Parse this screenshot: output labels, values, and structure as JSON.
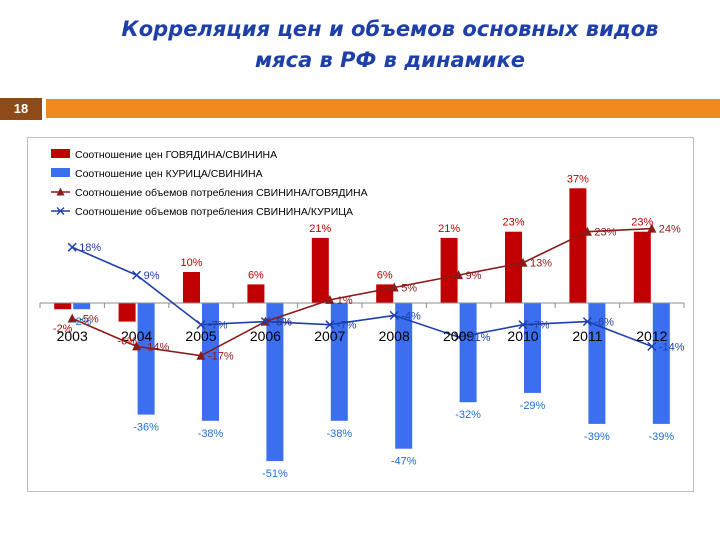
{
  "slide": {
    "title_line_1": "Корреляция цен и объемов основных видов",
    "title_line_2": "мяса в РФ в динамике",
    "number": "18"
  },
  "colors": {
    "title": "#1f3fa8",
    "number_box": "#8e4a17",
    "header_bar": "#f08a1c",
    "beef_pork_bars": "#c00000",
    "chicken_pork_bars": "#3b6ff0",
    "beef_volume_line": "#8b1a1a",
    "chicken_volume_line": "#1f3fa8"
  },
  "chart_data": {
    "type": "bar",
    "categories": [
      "2003",
      "2004",
      "2005",
      "2006",
      "2007",
      "2008",
      "2009",
      "2010",
      "2011",
      "2012"
    ],
    "ylim": [
      -55,
      45
    ],
    "grid": false,
    "legend_position": "top-left",
    "series": [
      {
        "name": "Соотношение цен ГОВЯДИНА/СВИНИНА",
        "kind": "bar",
        "values": [
          -2,
          -6,
          10,
          6,
          21,
          6,
          21,
          23,
          37,
          23
        ],
        "labels": [
          "-2%",
          "-6%",
          "10%",
          "6%",
          "21%",
          "6%",
          "21%",
          "23%",
          "37%",
          "23%"
        ]
      },
      {
        "name": "Соотношение цен КУРИЦА/СВИНИНА",
        "kind": "bar",
        "values": [
          -2,
          -36,
          -38,
          -51,
          -38,
          -47,
          -32,
          -29,
          -39,
          -39
        ],
        "labels": [
          "-2%",
          "-36%",
          "-38%",
          "-51%",
          "-38%",
          "-47%",
          "-32%",
          "-29%",
          "-39%",
          "-39%"
        ]
      },
      {
        "name": "Соотношение объемов потребления СВИНИНА/ГОВЯДИНА",
        "kind": "line-triangle",
        "values": [
          -5,
          -14,
          -17,
          -6,
          1,
          5,
          9,
          13,
          23,
          24
        ],
        "labels": [
          "-5%",
          "-14%",
          "-17%",
          "-6%",
          "1%",
          "5%",
          "9%",
          "13%",
          "23%",
          "24%"
        ]
      },
      {
        "name": "Соотношение объемов потребления СВИНИНА/КУРИЦА",
        "kind": "line-x",
        "values": [
          18,
          9,
          -7,
          -6,
          -7,
          -4,
          -11,
          -7,
          -6,
          -14
        ],
        "labels": [
          "18%",
          "9%",
          "-7%",
          "-6%",
          "-7%",
          "-4%",
          "-11%",
          "-7%",
          "-6%",
          "-14%"
        ]
      }
    ]
  }
}
